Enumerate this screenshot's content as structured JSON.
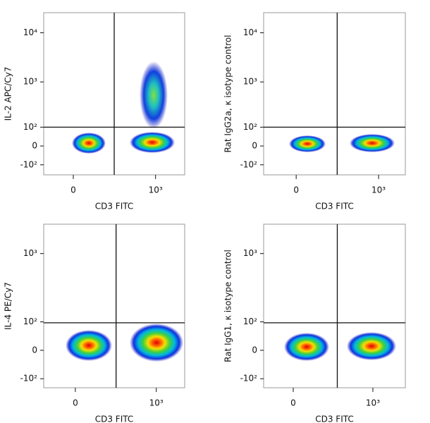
{
  "chart_data": [
    {
      "type": "scatter",
      "xlabel": "CD3 FITC",
      "ylabel": "IL-2 APC/Cy7",
      "xscale": "biexponential",
      "yscale": "biexponential",
      "xlim": [
        -130,
        2900
      ],
      "ylim": [
        -180,
        25600
      ],
      "xticks": [
        0,
        {
          "value": 1000,
          "label": "10³"
        }
      ],
      "yticks": [
        {
          "value": 10000,
          "label": "10⁴"
        },
        {
          "value": 1000,
          "label": "10³"
        },
        {
          "value": 100,
          "label": "10²"
        },
        0,
        {
          "value": -100,
          "label": "-10²"
        }
      ],
      "gates": {
        "x": 211,
        "y": 100
      }
    },
    {
      "type": "scatter",
      "xlabel": "CD3 FITC",
      "ylabel": "Rat IgG2a, κ isotype control",
      "xscale": "biexponential",
      "yscale": "biexponential",
      "xlim": [
        -148,
        2650
      ],
      "ylim": [
        -180,
        25600
      ],
      "xticks": [
        0,
        {
          "value": 1000,
          "label": "10³"
        }
      ],
      "yticks": [
        {
          "value": 10000,
          "label": "10⁴"
        },
        {
          "value": 1000,
          "label": "10³"
        },
        {
          "value": 100,
          "label": "10²"
        },
        0,
        {
          "value": -100,
          "label": "-10²"
        }
      ],
      "gates": {
        "x": 211,
        "y": 100
      }
    },
    {
      "type": "scatter",
      "xlabel": "CD3 FITC",
      "ylabel": "IL-4 PE/Cy7",
      "xscale": "biexponential",
      "yscale": "biexponential",
      "xlim": [
        -146,
        2870
      ],
      "ylim": [
        -144,
        2490
      ],
      "xticks": [
        0,
        {
          "value": 1000,
          "label": "10³"
        }
      ],
      "yticks": [
        {
          "value": 1000,
          "label": "10³"
        },
        {
          "value": 100,
          "label": "10²"
        },
        0,
        {
          "value": -100,
          "label": "-10²"
        }
      ],
      "gates": {
        "x": 215,
        "y": 96
      }
    },
    {
      "type": "scatter",
      "xlabel": "CD3 FITC",
      "ylabel": "Rat IgG1, κ isotype control",
      "xscale": "biexponential",
      "yscale": "biexponential",
      "xlim": [
        -136,
        3400
      ],
      "ylim": [
        -144,
        2490
      ],
      "xticks": [
        0,
        {
          "value": 1000,
          "label": "10³"
        }
      ],
      "yticks": [
        {
          "value": 1000,
          "label": "10³"
        },
        {
          "value": 100,
          "label": "10²"
        },
        0,
        {
          "value": -100,
          "label": "-10²"
        }
      ],
      "gates": {
        "x": 253,
        "y": 96
      }
    }
  ]
}
